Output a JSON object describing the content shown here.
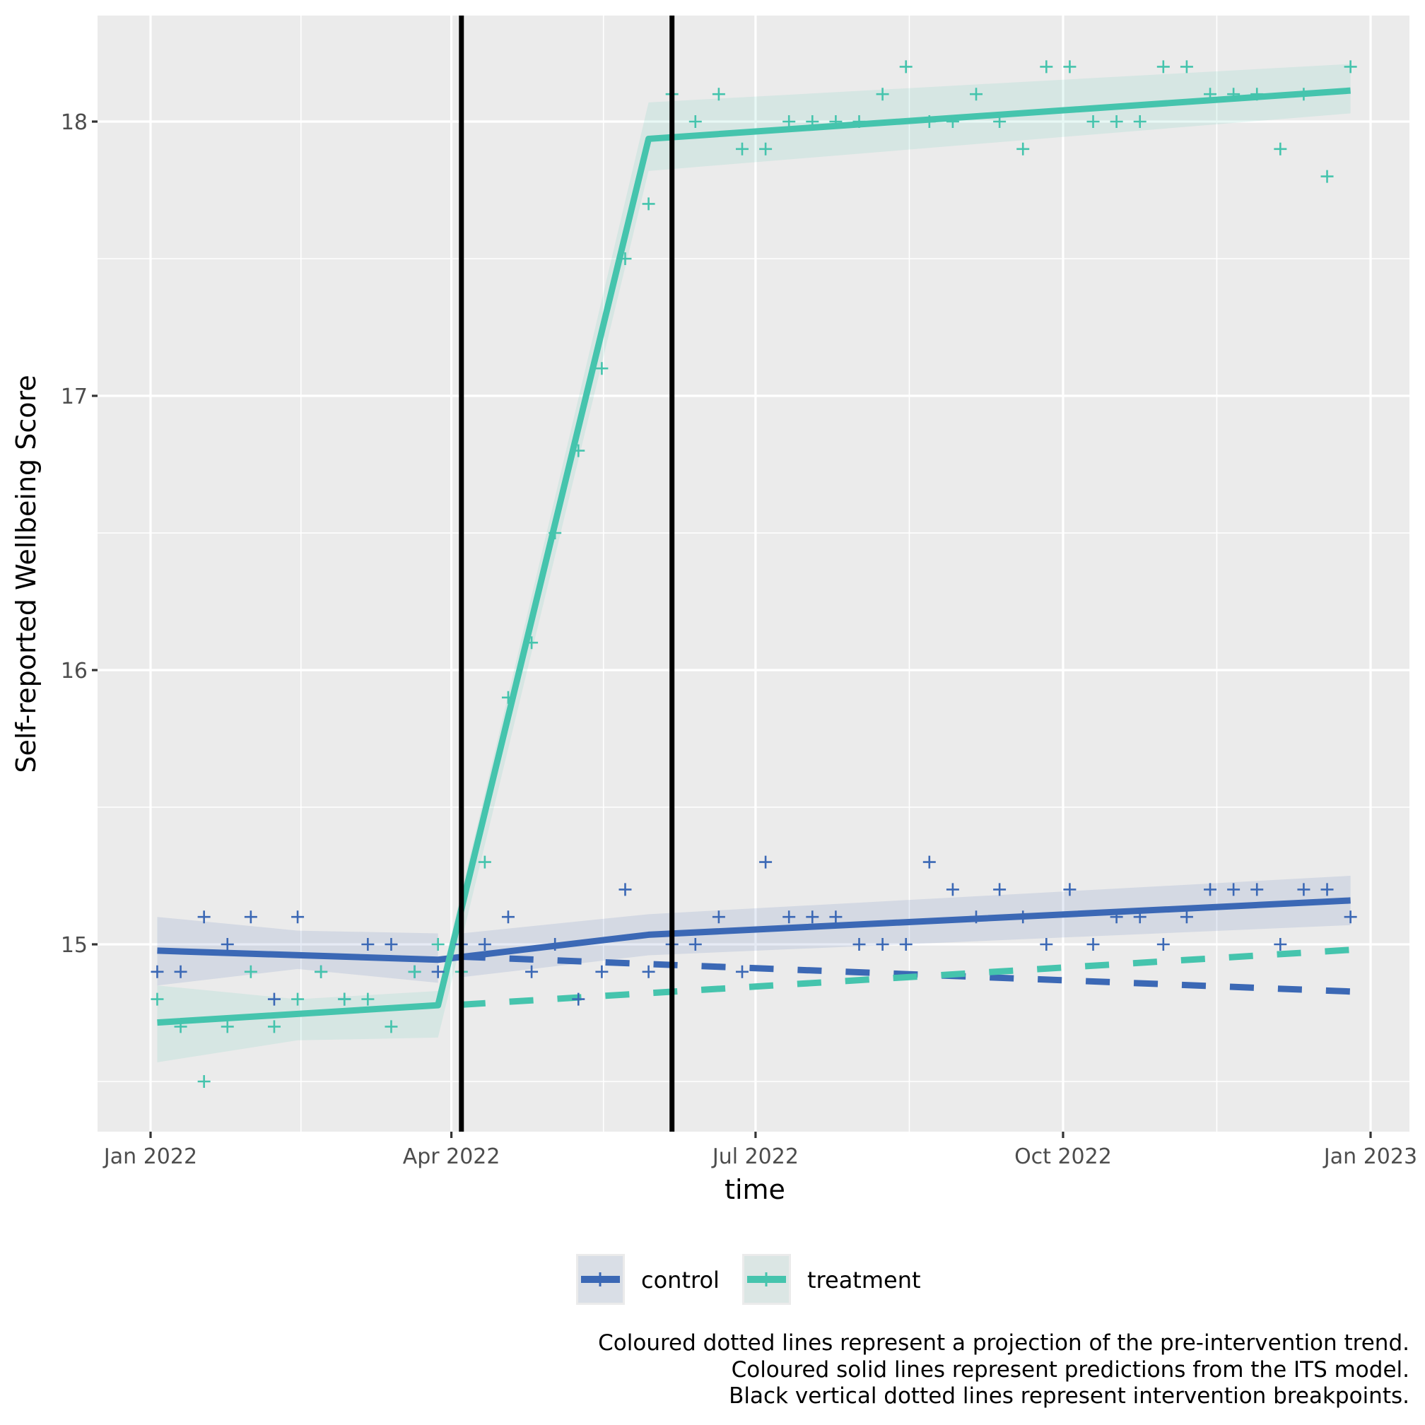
{
  "chart_data": {
    "type": "line",
    "title": "",
    "xlabel": "time",
    "ylabel": "Self-reported Wellbeing Score",
    "x_axis": {
      "type": "date",
      "range": [
        "2021-12-20",
        "2023-01-12"
      ],
      "ticks": [
        {
          "date": "2022-01-01",
          "label": "Jan 2022"
        },
        {
          "date": "2022-04-01",
          "label": "Apr 2022"
        },
        {
          "date": "2022-07-01",
          "label": "Jul 2022"
        },
        {
          "date": "2022-10-01",
          "label": "Oct 2022"
        },
        {
          "date": "2023-01-01",
          "label": "Jan 2023"
        }
      ]
    },
    "y_axis": {
      "range": [
        14.32,
        18.38
      ],
      "ticks": [
        {
          "value": 15,
          "label": "15"
        },
        {
          "value": 16,
          "label": "16"
        },
        {
          "value": 17,
          "label": "17"
        },
        {
          "value": 18,
          "label": "18"
        }
      ]
    },
    "grid": true,
    "x_start_date": "2022-01-03",
    "x_step_days": 7,
    "breakpoints": [
      "2022-04-04",
      "2022-06-06"
    ],
    "series": [
      {
        "name": "control",
        "color": "#3b68b5",
        "points": [
          14.9,
          14.9,
          15.1,
          15.0,
          15.1,
          14.8,
          15.1,
          14.9,
          14.8,
          15.0,
          15.0,
          14.9,
          14.9,
          15.0,
          15.0,
          15.1,
          14.9,
          15.0,
          14.8,
          14.9,
          15.2,
          14.9,
          15.0,
          15.0,
          15.1,
          14.9,
          15.3,
          15.1,
          15.1,
          15.1,
          15.0,
          15.0,
          15.0,
          15.3,
          15.2,
          15.1,
          15.2,
          15.1,
          15.0,
          15.2,
          15.0,
          15.1,
          15.1,
          15.0,
          15.1,
          15.2,
          15.2,
          15.2,
          15.0,
          15.2,
          15.2,
          15.1
        ],
        "fit": [
          {
            "date": "2022-01-03",
            "value": 14.977
          },
          {
            "date": "2022-03-28",
            "value": 14.944
          },
          {
            "date": "2022-05-30",
            "value": 15.035
          },
          {
            "date": "2022-12-26",
            "value": 15.16
          }
        ],
        "ribbon": [
          {
            "date": "2022-01-03",
            "upper": 15.1,
            "lower": 14.85
          },
          {
            "date": "2022-02-14",
            "upper": 15.05,
            "lower": 14.91
          },
          {
            "date": "2022-03-28",
            "upper": 15.04,
            "lower": 14.86
          },
          {
            "date": "2022-04-04",
            "upper": 15.04,
            "lower": 14.88
          },
          {
            "date": "2022-05-30",
            "upper": 15.11,
            "lower": 14.96
          },
          {
            "date": "2022-12-26",
            "upper": 15.25,
            "lower": 15.07
          }
        ],
        "projection": [
          {
            "date": "2022-04-04",
            "value": 14.955
          },
          {
            "date": "2022-12-26",
            "value": 14.828
          }
        ]
      },
      {
        "name": "treatment",
        "color": "#45c4ad",
        "points": [
          14.8,
          14.7,
          14.5,
          14.7,
          14.9,
          14.7,
          14.8,
          14.9,
          14.8,
          14.8,
          14.7,
          14.9,
          15.0,
          14.9,
          15.3,
          15.9,
          16.1,
          16.5,
          16.8,
          17.1,
          17.5,
          17.7,
          18.1,
          18.0,
          18.1,
          17.9,
          17.9,
          18.0,
          18.0,
          18.0,
          18.0,
          18.1,
          18.2,
          18.0,
          18.0,
          18.1,
          18.0,
          17.9,
          18.2,
          18.2,
          18.0,
          18.0,
          18.0,
          18.2,
          18.2,
          18.1,
          18.1,
          18.1,
          17.9,
          18.1,
          17.8,
          18.2
        ],
        "fit": [
          {
            "date": "2022-01-03",
            "value": 14.715
          },
          {
            "date": "2022-03-28",
            "value": 14.778
          },
          {
            "date": "2022-05-30",
            "value": 17.937
          },
          {
            "date": "2022-12-26",
            "value": 18.113
          }
        ],
        "ribbon": [
          {
            "date": "2022-01-03",
            "upper": 14.85,
            "lower": 14.57
          },
          {
            "date": "2022-02-14",
            "upper": 14.8,
            "lower": 14.65
          },
          {
            "date": "2022-03-28",
            "upper": 14.83,
            "lower": 14.66
          },
          {
            "date": "2022-05-30",
            "upper": 18.07,
            "lower": 17.82
          },
          {
            "date": "2022-12-26",
            "upper": 18.21,
            "lower": 18.03
          }
        ],
        "projection": [
          {
            "date": "2022-04-04",
            "value": 14.78
          },
          {
            "date": "2022-12-26",
            "value": 14.98
          }
        ]
      }
    ],
    "legend": {
      "placement": "bottom",
      "entries": [
        "control",
        "treatment"
      ]
    },
    "caption": [
      "Coloured dotted lines represent a projection of the pre-intervention trend.",
      "Coloured solid lines represent predictions from the ITS model.",
      "Black vertical dotted lines represent intervention breakpoints."
    ]
  },
  "colors": {
    "panel_background": "#ebebeb",
    "gridline": "#ffffff",
    "breakpoint_line": "#000000"
  }
}
